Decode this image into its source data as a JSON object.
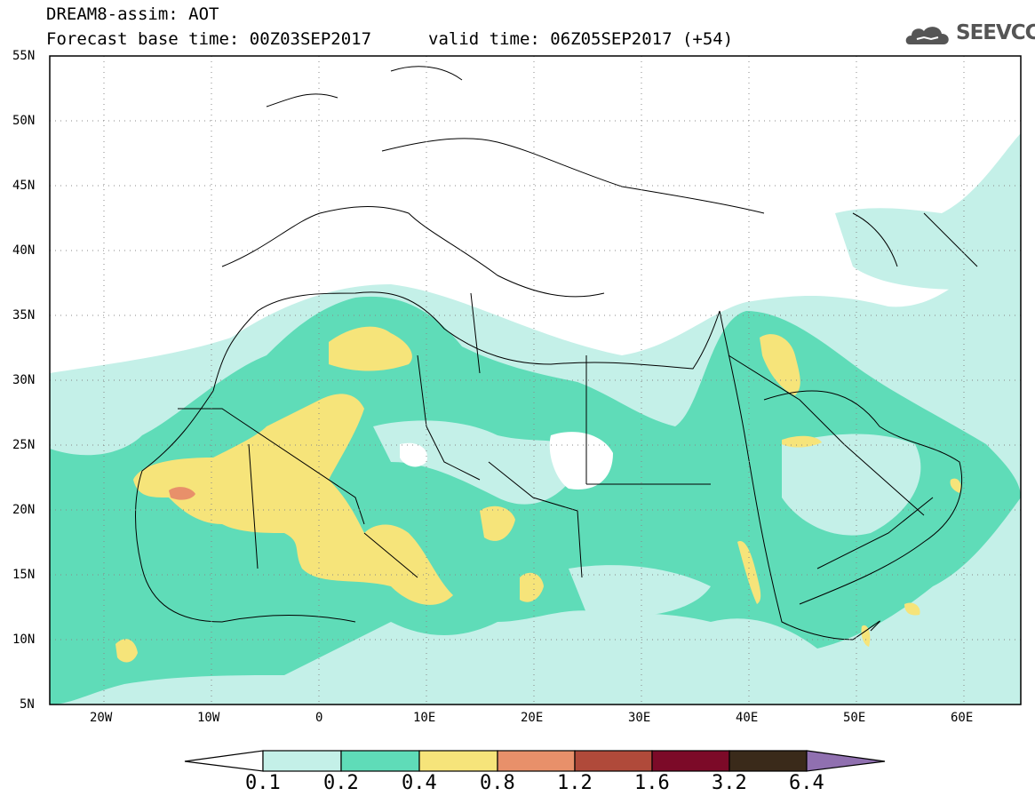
{
  "title": {
    "line1": "DREAM8-assim: AOT",
    "line2": "Forecast base time: 00Z03SEP2017",
    "valid": "valid time: 06Z05SEP2017 (+54)"
  },
  "logo": {
    "text": "SEEVCCC",
    "icon": "cloud-logo-icon"
  },
  "axes": {
    "lat_labels": [
      "55N",
      "50N",
      "45N",
      "40N",
      "35N",
      "30N",
      "25N",
      "20N",
      "15N",
      "10N",
      "5N"
    ],
    "lon_labels": [
      "20W",
      "10W",
      "0",
      "10E",
      "20E",
      "30E",
      "40E",
      "50E",
      "60E"
    ]
  },
  "colorbar": {
    "labels": [
      "0.1",
      "0.2",
      "0.4",
      "0.8",
      "1.2",
      "1.6",
      "3.2",
      "6.4"
    ],
    "colors": [
      "#ffffff",
      "#c4f0e8",
      "#5fdcb8",
      "#f6e47a",
      "#e8906a",
      "#b04a3a",
      "#7c0a28",
      "#3a2a1a",
      "#9070b0"
    ]
  },
  "colors": {
    "c01": "#c4f0e8",
    "c02": "#5fdcb8",
    "c04": "#f6e47a",
    "c08": "#e8906a",
    "border": "#000000"
  }
}
